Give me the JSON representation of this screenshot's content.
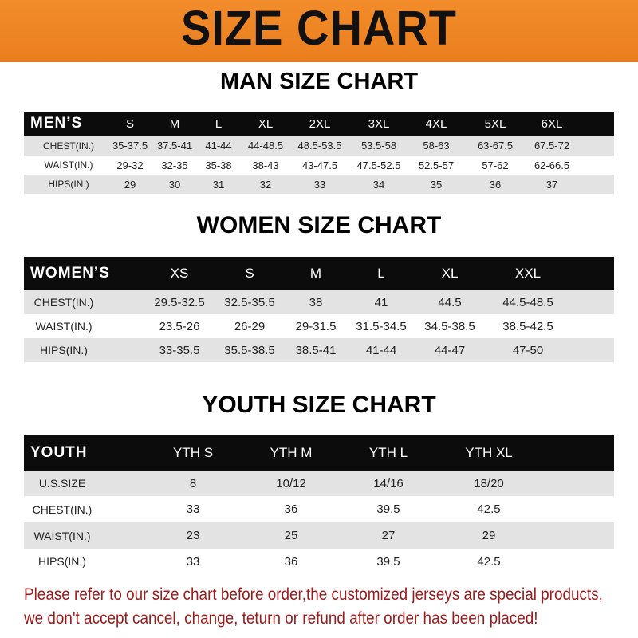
{
  "banner": {
    "title": "SIZE CHART",
    "color": "#f08a28"
  },
  "men": {
    "title": "MAN SIZE CHART",
    "header_label": "MEN’S",
    "sizes": [
      "S",
      "M",
      "L",
      "XL",
      "2XL",
      "3XL",
      "4XL",
      "5XL",
      "6XL"
    ],
    "rows": [
      {
        "label": "CHEST(IN.)",
        "values": [
          "35-37.5",
          "37.5-41",
          "41-44",
          "44-48.5",
          "48.5-53.5",
          "53.5-58",
          "58-63",
          "63-67.5",
          "67.5-72"
        ]
      },
      {
        "label": "WAIST(IN.)",
        "values": [
          "29-32",
          "32-35",
          "35-38",
          "38-43",
          "43-47.5",
          "47.5-52.5",
          "52.5-57",
          "57-62",
          "62-66.5"
        ]
      },
      {
        "label": "HIPS(IN.)",
        "values": [
          "29",
          "30",
          "31",
          "32",
          "33",
          "34",
          "35",
          "36",
          "37"
        ]
      }
    ]
  },
  "women": {
    "title": "WOMEN SIZE CHART",
    "header_label": "WOMEN’S",
    "sizes": [
      "XS",
      "S",
      "M",
      "L",
      "XL",
      "XXL"
    ],
    "rows": [
      {
        "label": "CHEST(IN.)",
        "values": [
          "29.5-32.5",
          "32.5-35.5",
          "38",
          "41",
          "44.5",
          "44.5-48.5"
        ]
      },
      {
        "label": "WAIST(IN.)",
        "values": [
          "23.5-26",
          "26-29",
          "29-31.5",
          "31.5-34.5",
          "34.5-38.5",
          "38.5-42.5"
        ]
      },
      {
        "label": "HIPS(IN.)",
        "values": [
          "33-35.5",
          "35.5-38.5",
          "38.5-41",
          "41-44",
          "44-47",
          "47-50"
        ]
      }
    ]
  },
  "youth": {
    "title": "YOUTH SIZE CHART",
    "header_label": "YOUTH",
    "sizes": [
      "YTH S",
      "YTH M",
      "YTH L",
      "YTH XL"
    ],
    "rows": [
      {
        "label": "U.S.SIZE",
        "values": [
          "8",
          "10/12",
          "14/16",
          "18/20"
        ]
      },
      {
        "label": "CHEST(IN.)",
        "values": [
          "33",
          "36",
          "39.5",
          "42.5"
        ]
      },
      {
        "label": "WAIST(IN.)",
        "values": [
          "23",
          "25",
          "27",
          "29"
        ]
      },
      {
        "label": "HIPS(IN.)",
        "values": [
          "33",
          "36",
          "39.5",
          "42.5"
        ]
      }
    ]
  },
  "notice": {
    "line1": "Please refer to our size chart before order,the customized jerseys are special products,",
    "line2": "we don't accept cancel, change, teturn or refund after order has been placed!",
    "color": "#9b1b1b"
  }
}
